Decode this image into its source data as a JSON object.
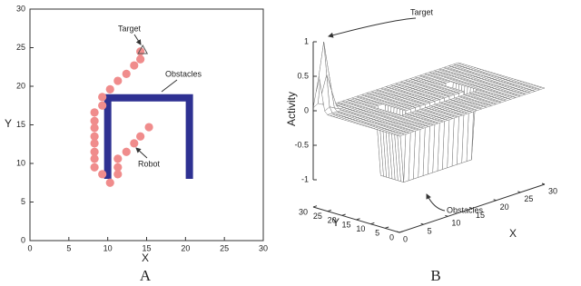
{
  "chart_data": [
    {
      "type": "scatter",
      "caption": "A",
      "xlabel": "X",
      "ylabel": "Y",
      "xlim": [
        0,
        30
      ],
      "ylim": [
        0,
        30
      ],
      "xticks": [
        0,
        5,
        10,
        15,
        20,
        25,
        30
      ],
      "yticks": [
        0,
        5,
        10,
        15,
        20,
        25,
        30
      ],
      "color": "#f08c8c",
      "x": [
        14.2,
        14.2,
        13.4,
        12.4,
        11.3,
        10.3,
        9.3,
        9.3,
        8.3,
        8.3,
        8.3,
        8.3,
        8.3,
        8.3,
        8.3,
        8.3,
        9.3,
        10.3,
        11.3,
        11.3,
        11.3,
        12.4,
        13.4,
        14.2,
        15.3
      ],
      "y": [
        24.5,
        23.5,
        22.7,
        21.6,
        20.7,
        19.6,
        18.6,
        17.5,
        16.6,
        15.5,
        14.6,
        13.5,
        12.6,
        11.5,
        10.6,
        9.5,
        8.6,
        7.5,
        8.6,
        9.5,
        10.6,
        11.5,
        12.6,
        13.5,
        14.7
      ],
      "target": {
        "x": 14.5,
        "y": 24.7
      },
      "obstacle": {
        "color": "#2e3192",
        "x": [
          10,
          10,
          20.5,
          20.5
        ],
        "y": [
          8,
          18.5,
          18.5,
          8
        ]
      },
      "annotations": [
        "Target",
        "Obstacles",
        "Robot"
      ]
    },
    {
      "type": "surface",
      "caption": "B",
      "xlabel": "X",
      "ylabel": "Y",
      "zlabel": "Activity",
      "xlim": [
        0,
        30
      ],
      "ylim": [
        0,
        30
      ],
      "zlim": [
        -1,
        1
      ],
      "xticks": [
        0,
        5,
        10,
        15,
        20,
        25,
        30
      ],
      "yticks": [
        0,
        5,
        10,
        15,
        20,
        25,
        30
      ],
      "zticks": [
        1,
        0.5,
        0,
        -0.5,
        -1
      ],
      "annotations": [
        "Target",
        "Obstacles"
      ]
    }
  ]
}
